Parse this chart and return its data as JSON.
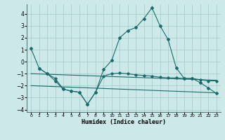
{
  "title": "",
  "xlabel": "Humidex (Indice chaleur)",
  "xlim": [
    -0.5,
    23.5
  ],
  "ylim": [
    -4.2,
    4.8
  ],
  "yticks": [
    -4,
    -3,
    -2,
    -1,
    0,
    1,
    2,
    3,
    4
  ],
  "xticks": [
    0,
    1,
    2,
    3,
    4,
    5,
    6,
    7,
    8,
    9,
    10,
    11,
    12,
    13,
    14,
    15,
    16,
    17,
    18,
    19,
    20,
    21,
    22,
    23
  ],
  "bg_color": "#cce8e8",
  "grid_color": "#aacece",
  "line_color": "#1a6b6b",
  "line1_x": [
    0,
    1,
    2,
    3,
    4,
    5,
    6,
    7,
    8,
    9,
    10,
    11,
    12,
    13,
    14,
    15,
    16,
    17,
    18,
    19,
    20,
    21,
    22,
    23
  ],
  "line1_y": [
    1.1,
    -0.55,
    -1.0,
    -1.6,
    -2.3,
    -2.45,
    -2.55,
    -3.55,
    -2.55,
    -0.65,
    0.1,
    2.0,
    2.6,
    2.85,
    3.6,
    4.5,
    3.0,
    1.85,
    -0.5,
    -1.4,
    -1.4,
    -1.75,
    -2.2,
    -2.65
  ],
  "line2_x": [
    1,
    2,
    3,
    4,
    5,
    6,
    7,
    8,
    9,
    10,
    11,
    12,
    13,
    14,
    15,
    16,
    17,
    18,
    19,
    20,
    21,
    22,
    23
  ],
  "line2_y": [
    -0.55,
    -1.0,
    -1.4,
    -2.3,
    -2.45,
    -2.55,
    -3.55,
    -2.55,
    -1.2,
    -1.0,
    -0.95,
    -1.0,
    -1.1,
    -1.15,
    -1.2,
    -1.3,
    -1.35,
    -1.35,
    -1.4,
    -1.4,
    -1.5,
    -1.6,
    -1.6
  ],
  "line3_x": [
    0,
    23
  ],
  "line3_y": [
    -1.0,
    -1.55
  ],
  "line4_x": [
    0,
    23
  ],
  "line4_y": [
    -2.0,
    -2.6
  ]
}
